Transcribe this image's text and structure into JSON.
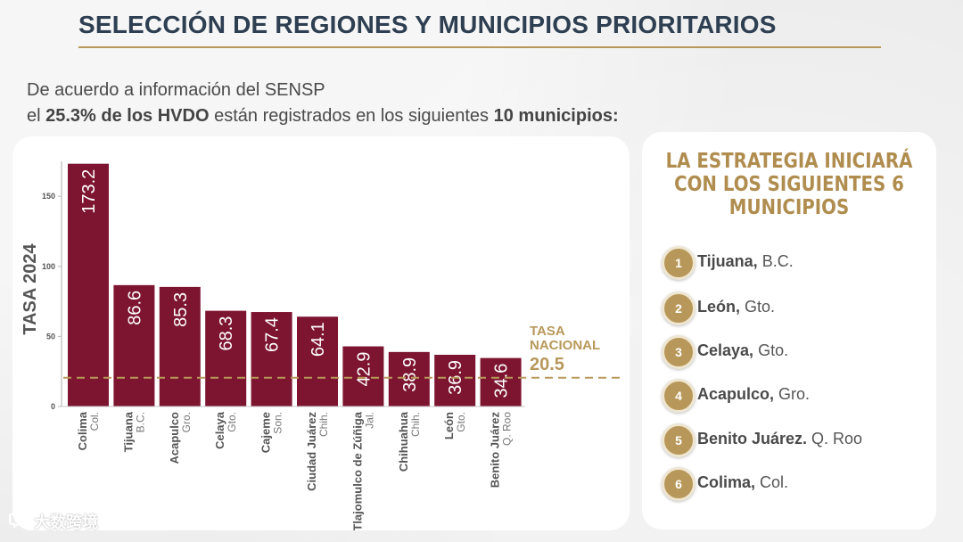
{
  "title": "SELECCIÓN DE REGIONES Y MUNICIPIOS PRIORITARIOS",
  "subtitle": {
    "line1": "De acuerdo a información del SENSP",
    "line2_pre": "el ",
    "line2_bold1": "25.3% de los HVDO",
    "line2_mid": " están registrados en los siguientes ",
    "line2_bold2": "10 municipios:"
  },
  "chart_data": {
    "type": "bar",
    "ylabel": "TASA 2024",
    "ylim": [
      0,
      180
    ],
    "yticks": [
      0,
      50,
      100,
      150
    ],
    "categories": [
      {
        "name": "Colima",
        "state": "Col."
      },
      {
        "name": "Tijuana",
        "state": "B.C."
      },
      {
        "name": "Acapulco",
        "state": "Gro."
      },
      {
        "name": "Celaya",
        "state": "Gto."
      },
      {
        "name": "Cajeme",
        "state": "Son."
      },
      {
        "name": "Ciudad Juárez",
        "state": "Chih."
      },
      {
        "name": "Tlajomulco de Zúñiga",
        "state": "Jal."
      },
      {
        "name": "Chihuahua",
        "state": "Chih."
      },
      {
        "name": "León",
        "state": "Gto."
      },
      {
        "name": "Benito Juárez",
        "state": "Q. Roo"
      }
    ],
    "values": [
      173.2,
      86.6,
      85.3,
      68.3,
      67.4,
      64.1,
      42.9,
      38.9,
      36.9,
      34.6
    ],
    "value_labels": [
      "173.2",
      "86.6",
      "85.3",
      "68.3",
      "67.4",
      "64.1",
      "42.9",
      "38.9",
      "36.9",
      "34.6"
    ],
    "reference_line": {
      "label_line1": "TASA",
      "label_line2": "NACIONAL",
      "value": 20.5,
      "value_label": "20.5"
    },
    "colors": {
      "bar": "#7d1530",
      "reference": "#b8985a"
    }
  },
  "strategy": {
    "title_lines": [
      "LA ESTRATEGIA INICIARÁ",
      "CON LOS SIGUIENTES 6",
      "MUNICIPIOS"
    ],
    "items": [
      {
        "num": "1",
        "name": "Tijuana,",
        "state": "B.C."
      },
      {
        "num": "2",
        "name": "León,",
        "state": "Gto."
      },
      {
        "num": "3",
        "name": "Celaya,",
        "state": "Gto."
      },
      {
        "num": "4",
        "name": "Acapulco,",
        "state": "Gro."
      },
      {
        "num": "5",
        "name": "Benito Juárez.",
        "state": "Q. Roo"
      },
      {
        "num": "6",
        "name": "Colima,",
        "state": "Col."
      }
    ]
  },
  "watermark": {
    "icon": "bubble-logo-icon",
    "text": "大数跨境"
  }
}
